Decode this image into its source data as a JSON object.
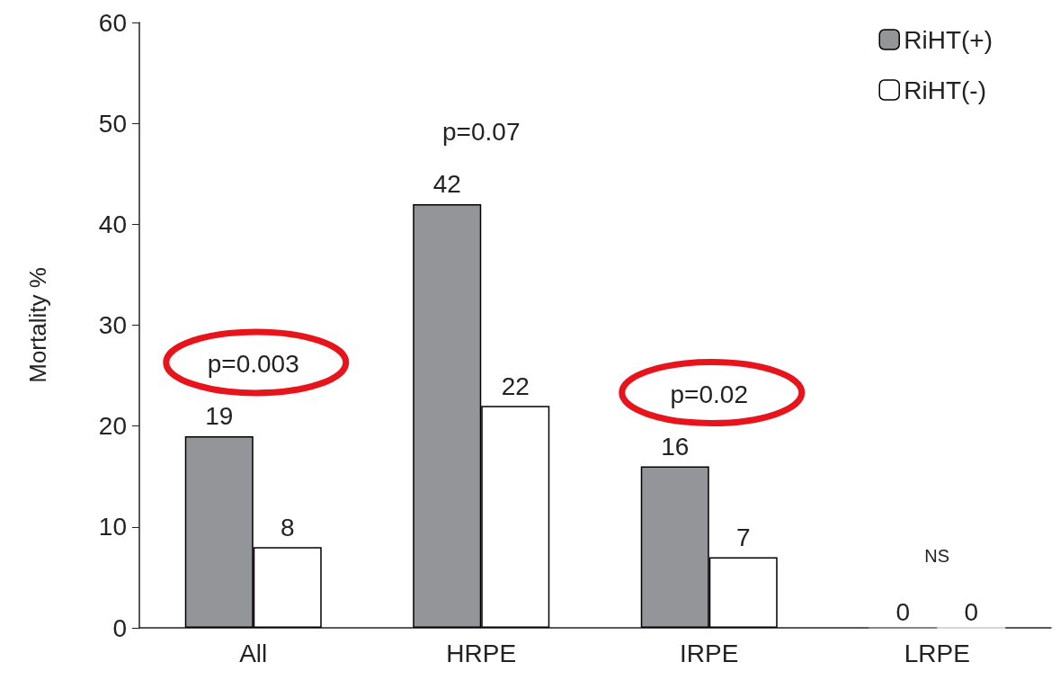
{
  "chart_data": {
    "type": "bar",
    "ylabel": "Mortality %",
    "categories": [
      "All",
      "HRPE",
      "IRPE",
      "LRPE"
    ],
    "series": [
      {
        "name": "RiHT(+)",
        "color": "#939598",
        "values": [
          19,
          42,
          16,
          0
        ]
      },
      {
        "name": "RiHT(-)",
        "color": "#ffffff",
        "values": [
          8,
          22,
          7,
          0
        ]
      }
    ],
    "ylim": [
      0,
      60
    ],
    "yticks": [
      0,
      10,
      20,
      30,
      40,
      50,
      60
    ],
    "grid": false,
    "legend": "top right",
    "data_labels": true,
    "annotations": [
      "p=0.003",
      "p=0.07",
      "p=0.02",
      "NS"
    ]
  }
}
